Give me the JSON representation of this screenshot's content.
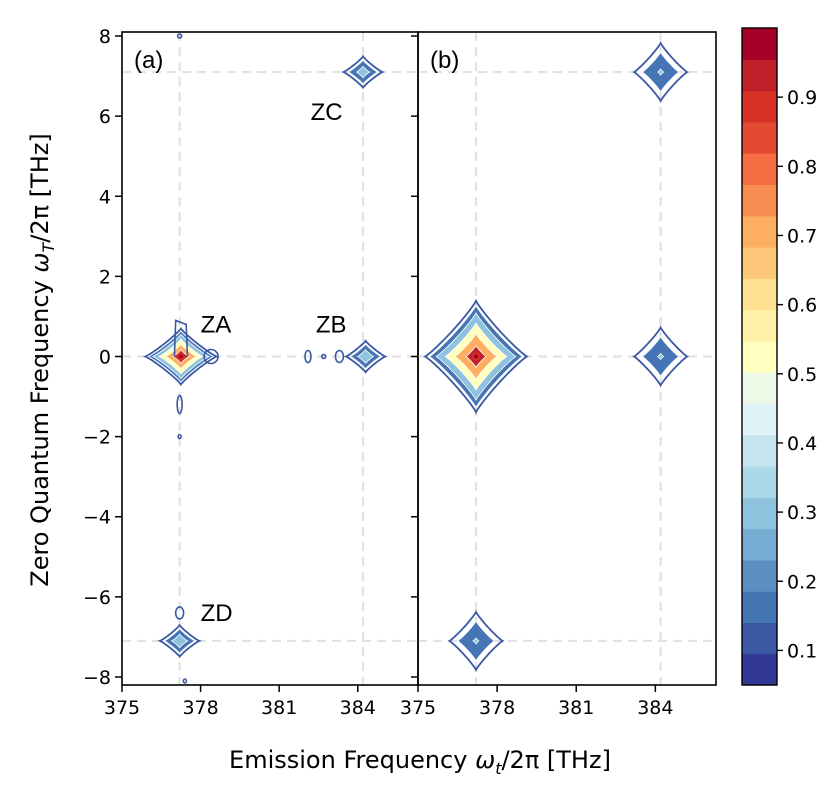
{
  "chart_data": {
    "type": "contour",
    "xlabel_prefix": "Emission Frequency ",
    "xlabel_symbol": "ω",
    "xlabel_subscript": "t",
    "xlabel_suffix": "/2π [THz]",
    "ylabel_prefix": "Zero Quantum Frequency ",
    "ylabel_symbol": "ω",
    "ylabel_subscript": "T",
    "ylabel_suffix": "/2π [THz]",
    "xlim": [
      375,
      386.3
    ],
    "ylim": [
      -8.2,
      8.1
    ],
    "x_ticks": [
      375,
      378,
      381,
      384
    ],
    "x_tick_labels": [
      "375",
      "378",
      "381",
      "384"
    ],
    "x_tick_labels_right": [
      "375",
      "378",
      "381",
      "384"
    ],
    "y_ticks": [
      -8,
      -6,
      -4,
      -2,
      0,
      2,
      4,
      6,
      8
    ],
    "y_tick_labels": [
      "−8",
      "−6",
      "−4",
      "−2",
      "0",
      "2",
      "4",
      "6",
      "8"
    ],
    "reference_lines": {
      "x": [
        377.2,
        384.2
      ],
      "y": [
        0,
        7.1,
        -7.1
      ]
    },
    "panels": [
      {
        "label": "(a)",
        "annotations": [
          {
            "text": "ZA",
            "x": 378.0,
            "y": 0.6
          },
          {
            "text": "ZB",
            "x": 382.4,
            "y": 0.6
          },
          {
            "text": "ZC",
            "x": 382.2,
            "y": 5.9
          },
          {
            "text": "ZD",
            "x": 378.0,
            "y": -6.6
          }
        ],
        "peaks": [
          {
            "name": "ZA",
            "x": 377.25,
            "y": 0.0,
            "amplitude": 1.0
          },
          {
            "name": "ZB",
            "x": 384.3,
            "y": 0.0,
            "amplitude": 0.38
          },
          {
            "name": "ZC",
            "x": 384.2,
            "y": 7.1,
            "amplitude": 0.35
          },
          {
            "name": "ZD",
            "x": 377.2,
            "y": -7.1,
            "amplitude": 0.38
          }
        ]
      },
      {
        "label": "(b)",
        "annotations": [],
        "peaks": [
          {
            "x": 377.2,
            "y": 0.0,
            "amplitude": 1.0
          },
          {
            "x": 384.2,
            "y": 0.0,
            "amplitude": 0.3
          },
          {
            "x": 384.2,
            "y": 7.1,
            "amplitude": 0.3
          },
          {
            "x": 377.2,
            "y": -7.1,
            "amplitude": 0.3
          }
        ]
      }
    ],
    "colorbar": {
      "range": [
        0.05,
        1.0
      ],
      "tick_values": [
        0.1,
        0.2,
        0.3,
        0.4,
        0.5,
        0.6,
        0.7,
        0.8,
        0.9
      ],
      "tick_labels": [
        "0.1",
        "0.2",
        "0.3",
        "0.4",
        "0.5",
        "0.6",
        "0.7",
        "0.8",
        "0.9"
      ],
      "colors": [
        "#313695",
        "#3a58a4",
        "#4575b4",
        "#5b8fc2",
        "#74add1",
        "#8fc2dd",
        "#abd9e9",
        "#c5e6f0",
        "#e0f3f8",
        "#eef8e6",
        "#ffffbf",
        "#fff0a8",
        "#fee090",
        "#fdc779",
        "#fdae61",
        "#f88d52",
        "#f46d43",
        "#e34a33",
        "#d73027",
        "#c11f2a",
        "#a50026"
      ]
    }
  }
}
